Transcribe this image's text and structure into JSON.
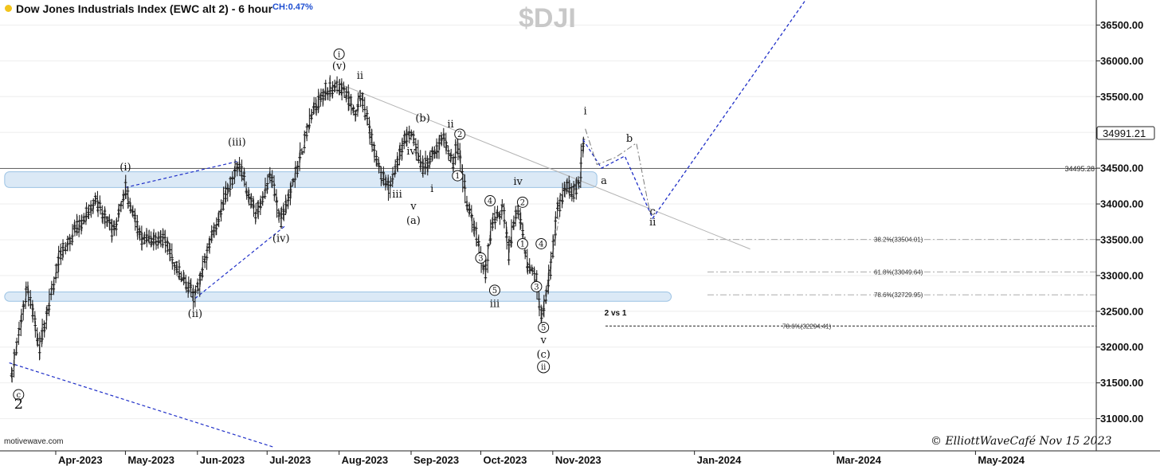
{
  "header": {
    "title": "Dow Jones Industrials Index (EWC alt 2) - 6 hour",
    "change": "CH:0.47%",
    "symbol": "$DJI",
    "source": "motivewave.com",
    "copyright": "© ElliottWaveCafé Nov 15 2023"
  },
  "colors": {
    "candles": "#222222",
    "zone_fill": "#dbe9f6",
    "zone_border": "#9cc3e4",
    "wave_projection": "#1f2fc8",
    "trendline": "#b3b3b3"
  },
  "chart_data": {
    "type": "ohlc",
    "title": "Dow Jones Industrials Index (EWC alt 2) - 6 hour",
    "ylim": [
      30550,
      36850
    ],
    "y_ticks": [
      "31000.00",
      "31500.00",
      "32000.00",
      "32500.00",
      "33000.00",
      "33500.00",
      "34000.00",
      "34500.00",
      "35000.00",
      "35500.00",
      "36000.00",
      "36500.00"
    ],
    "x_ticks": [
      {
        "date": "2023-04-01",
        "label": "Apr-2023"
      },
      {
        "date": "2023-05-01",
        "label": "May-2023"
      },
      {
        "date": "2023-06-01",
        "label": "Jun-2023"
      },
      {
        "date": "2023-07-01",
        "label": "Jul-2023"
      },
      {
        "date": "2023-08-01",
        "label": "Aug-2023"
      },
      {
        "date": "2023-09-01",
        "label": "Sep-2023"
      },
      {
        "date": "2023-10-01",
        "label": "Oct-2023"
      },
      {
        "date": "2023-11-01",
        "label": "Nov-2023"
      },
      {
        "date": "2024-01-01",
        "label": "Jan-2024"
      },
      {
        "date": "2024-03-01",
        "label": "Mar-2024"
      },
      {
        "date": "2024-05-01",
        "label": "May-2024"
      }
    ],
    "last_price": "34991.21",
    "price_line": {
      "value": 34495.28,
      "label": "34495.28"
    },
    "zones": [
      {
        "from": "2023-03-10",
        "to": "2023-11-20",
        "low": 34230,
        "high": 34450
      },
      {
        "from": "2023-03-10",
        "to": "2023-12-22",
        "low": 32640,
        "high": 32770
      }
    ],
    "fib_levels": [
      {
        "label": "38.2%(33504.01)",
        "value": 33504.01,
        "from": "2023-11-01"
      },
      {
        "label": "61.8%(33049.64)",
        "value": 33049.64,
        "from": "2023-11-01"
      },
      {
        "label": "78.6%(32729.95)",
        "value": 32729.95,
        "from": "2023-11-01"
      },
      {
        "label": "78.6%(32294.41)",
        "value": 32294.41,
        "from": "2023-10-01",
        "dashed": true
      }
    ],
    "anchors": [
      {
        "date": "2023-03-13",
        "price": 31600
      },
      {
        "date": "2023-03-20",
        "price": 32850
      },
      {
        "date": "2023-03-25",
        "price": 32000
      },
      {
        "date": "2023-04-03",
        "price": 33300
      },
      {
        "date": "2023-04-10",
        "price": 33650
      },
      {
        "date": "2023-04-18",
        "price": 34050
      },
      {
        "date": "2023-04-26",
        "price": 33600
      },
      {
        "date": "2023-05-01",
        "price": 34230
      },
      {
        "date": "2023-05-08",
        "price": 33500
      },
      {
        "date": "2023-05-18",
        "price": 33500
      },
      {
        "date": "2023-05-25",
        "price": 33000
      },
      {
        "date": "2023-05-31",
        "price": 32700
      },
      {
        "date": "2023-06-08",
        "price": 33600
      },
      {
        "date": "2023-06-14",
        "price": 34200
      },
      {
        "date": "2023-06-19",
        "price": 34570
      },
      {
        "date": "2023-06-26",
        "price": 33850
      },
      {
        "date": "2023-07-03",
        "price": 34400
      },
      {
        "date": "2023-07-07",
        "price": 33750
      },
      {
        "date": "2023-07-14",
        "price": 34500
      },
      {
        "date": "2023-07-21",
        "price": 35300
      },
      {
        "date": "2023-07-26",
        "price": 35600
      },
      {
        "date": "2023-08-02",
        "price": 35650
      },
      {
        "date": "2023-08-08",
        "price": 35300
      },
      {
        "date": "2023-08-11",
        "price": 35500
      },
      {
        "date": "2023-08-18",
        "price": 34500
      },
      {
        "date": "2023-08-23",
        "price": 34200
      },
      {
        "date": "2023-08-29",
        "price": 34900
      },
      {
        "date": "2023-09-01",
        "price": 35000
      },
      {
        "date": "2023-09-06",
        "price": 34500
      },
      {
        "date": "2023-09-11",
        "price": 34700
      },
      {
        "date": "2023-09-15",
        "price": 34950
      },
      {
        "date": "2023-09-19",
        "price": 34550
      },
      {
        "date": "2023-09-21",
        "price": 34850
      },
      {
        "date": "2023-09-25",
        "price": 34050
      },
      {
        "date": "2023-09-29",
        "price": 33600
      },
      {
        "date": "2023-10-03",
        "price": 33000
      },
      {
        "date": "2023-10-06",
        "price": 33750
      },
      {
        "date": "2023-10-11",
        "price": 33950
      },
      {
        "date": "2023-10-13",
        "price": 33300
      },
      {
        "date": "2023-10-17",
        "price": 34000
      },
      {
        "date": "2023-10-21",
        "price": 33150
      },
      {
        "date": "2023-10-25",
        "price": 32950
      },
      {
        "date": "2023-10-27",
        "price": 32350
      },
      {
        "date": "2023-10-31",
        "price": 33050
      },
      {
        "date": "2023-11-03",
        "price": 33900
      },
      {
        "date": "2023-11-07",
        "price": 34250
      },
      {
        "date": "2023-11-10",
        "price": 34150
      },
      {
        "date": "2023-11-13",
        "price": 34330
      },
      {
        "date": "2023-11-14",
        "price": 34880
      },
      {
        "date": "2023-11-15",
        "price": 34990
      }
    ],
    "projection": [
      {
        "date": "2023-11-14",
        "price": 34900
      },
      {
        "date": "2023-11-22",
        "price": 34500
      },
      {
        "date": "2023-12-02",
        "price": 34670
      },
      {
        "date": "2023-12-14",
        "price": 33800
      },
      {
        "date": "2024-02-20",
        "price": 36950
      }
    ],
    "alt_projection": [
      {
        "date": "2023-11-15",
        "price": 35050
      },
      {
        "date": "2023-11-20",
        "price": 34550
      },
      {
        "date": "2023-11-28",
        "price": 34650
      },
      {
        "date": "2023-12-07",
        "price": 34850
      },
      {
        "date": "2023-12-13",
        "price": 33850
      }
    ],
    "lines": [
      {
        "style": "solid-gray",
        "points": [
          {
            "date": "2023-08-01",
            "price": 35680
          },
          {
            "date": "2024-01-25",
            "price": 33370
          }
        ]
      },
      {
        "style": "dashed-blue",
        "points": [
          {
            "date": "2023-03-12",
            "price": 31780
          },
          {
            "date": "2023-07-04",
            "price": 30600
          }
        ]
      },
      {
        "style": "dashed-blue",
        "points": [
          {
            "date": "2023-05-01",
            "price": 34230
          },
          {
            "date": "2023-06-19",
            "price": 34600
          }
        ]
      },
      {
        "style": "dashed-blue",
        "points": [
          {
            "date": "2023-05-31",
            "price": 32680
          },
          {
            "date": "2023-07-09",
            "price": 33700
          }
        ]
      },
      {
        "style": "dashdot-gray",
        "points": [
          {
            "date": "2023-10-27",
            "price": 32400
          },
          {
            "date": "2023-11-04",
            "price": 33850
          }
        ]
      }
    ],
    "annotations": [
      {
        "text": "c",
        "date": "2023-03-16",
        "price": 31290,
        "circled": true
      },
      {
        "text": "2",
        "date": "2023-03-16",
        "price": 31140,
        "big": true
      },
      {
        "text": "(i)",
        "date": "2023-05-01",
        "price": 34470
      },
      {
        "text": "(ii)",
        "date": "2023-05-31",
        "price": 32420
      },
      {
        "text": "(iii)",
        "date": "2023-06-18",
        "price": 34820
      },
      {
        "text": "(iv)",
        "date": "2023-07-07",
        "price": 33470
      },
      {
        "text": "i",
        "date": "2023-08-01",
        "price": 36050,
        "circled": true
      },
      {
        "text": "(v)",
        "date": "2023-08-01",
        "price": 35880
      },
      {
        "text": "ii",
        "date": "2023-08-10",
        "price": 35750
      },
      {
        "text": "i",
        "date": "2023-08-15",
        "price": 34850
      },
      {
        "text": "iii",
        "date": "2023-08-26",
        "price": 34090
      },
      {
        "text": "iv",
        "date": "2023-09-01",
        "price": 34690
      },
      {
        "text": "v",
        "date": "2023-09-02",
        "price": 33920
      },
      {
        "text": "(a)",
        "date": "2023-09-02",
        "price": 33720
      },
      {
        "text": "(b)",
        "date": "2023-09-06",
        "price": 35150
      },
      {
        "text": "i",
        "date": "2023-09-10",
        "price": 34170
      },
      {
        "text": "ii",
        "date": "2023-09-18",
        "price": 35070
      },
      {
        "text": "2",
        "date": "2023-09-22",
        "price": 34930,
        "circled": true
      },
      {
        "text": "1",
        "date": "2023-09-21",
        "price": 34350,
        "circled": true
      },
      {
        "text": "4",
        "date": "2023-10-05",
        "price": 34000,
        "circled": true
      },
      {
        "text": "3",
        "date": "2023-10-01",
        "price": 33200,
        "circled": true
      },
      {
        "text": "5",
        "date": "2023-10-07",
        "price": 32750,
        "circled": true
      },
      {
        "text": "iii",
        "date": "2023-10-07",
        "price": 32560
      },
      {
        "text": "iv",
        "date": "2023-10-17",
        "price": 34270
      },
      {
        "text": "2",
        "date": "2023-10-19",
        "price": 33980,
        "circled": true
      },
      {
        "text": "1",
        "date": "2023-10-19",
        "price": 33400,
        "circled": true
      },
      {
        "text": "4",
        "date": "2023-10-27",
        "price": 33400,
        "circled": true
      },
      {
        "text": "3",
        "date": "2023-10-25",
        "price": 32800,
        "circled": true
      },
      {
        "text": "5",
        "date": "2023-10-28",
        "price": 32230,
        "circled": true
      },
      {
        "text": "v",
        "date": "2023-10-28",
        "price": 32050
      },
      {
        "text": "(c)",
        "date": "2023-10-28",
        "price": 31850
      },
      {
        "text": "ii",
        "date": "2023-10-28",
        "price": 31680,
        "circled": true
      },
      {
        "text": "i",
        "date": "2023-11-15",
        "price": 35250
      },
      {
        "text": "a",
        "date": "2023-11-23",
        "price": 34280
      },
      {
        "text": "b",
        "date": "2023-12-04",
        "price": 34870
      },
      {
        "text": "c",
        "date": "2023-12-14",
        "price": 33850
      },
      {
        "text": "ii",
        "date": "2023-12-14",
        "price": 33700
      },
      {
        "text": "2 vs 1",
        "date": "2023-11-28",
        "price": 32440,
        "bold": true,
        "small": true
      }
    ]
  }
}
